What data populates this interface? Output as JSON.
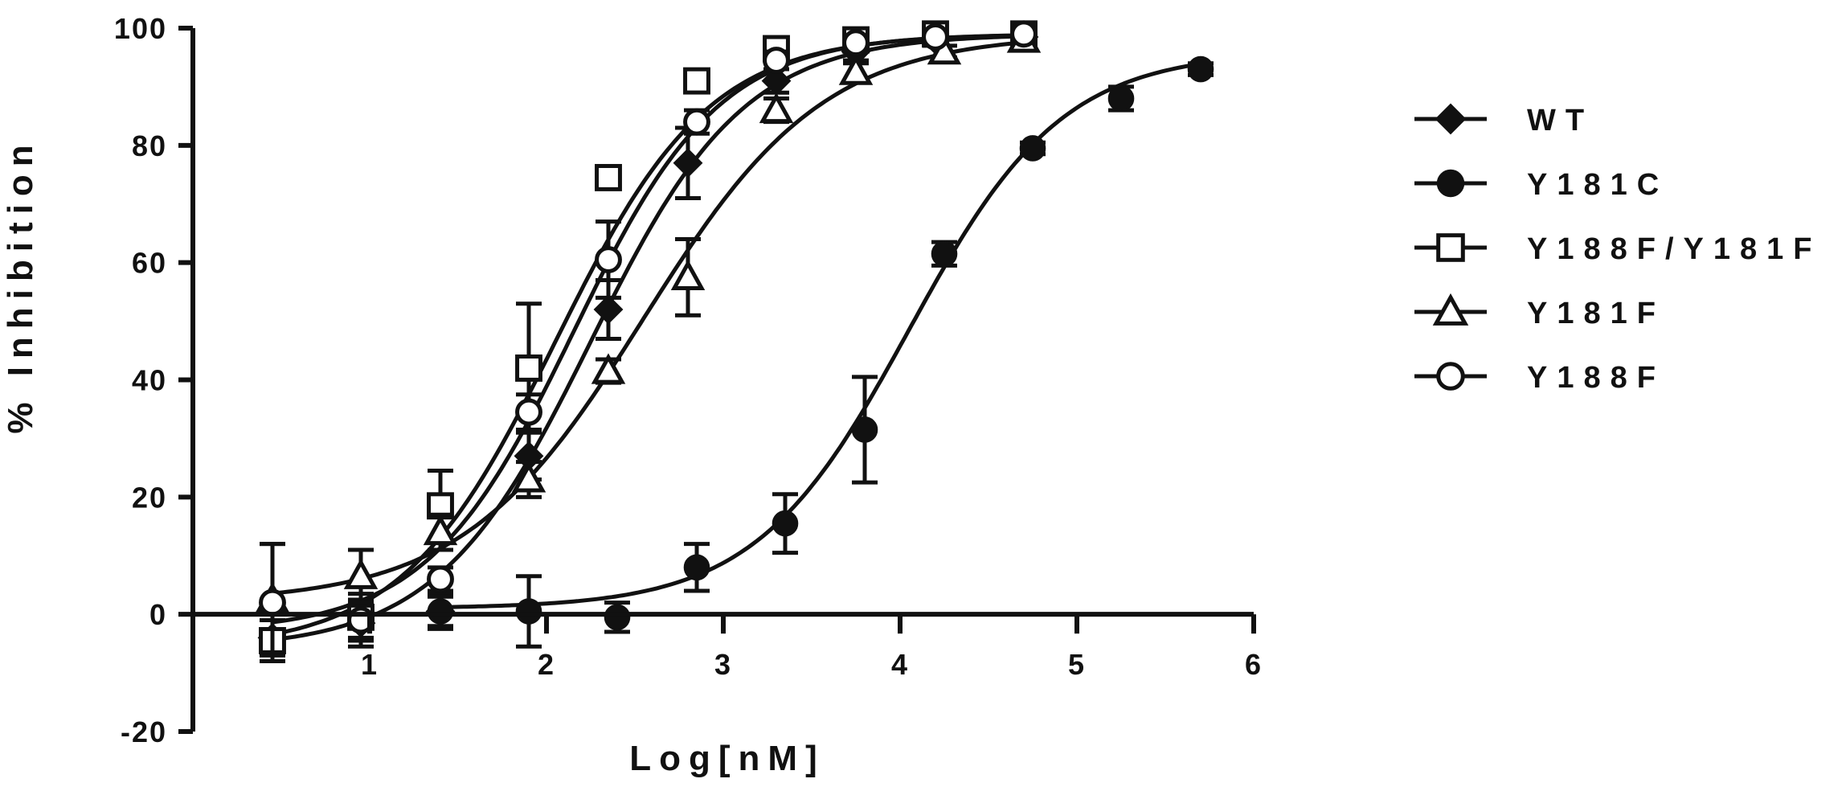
{
  "chart_data": {
    "type": "scatter",
    "xlabel": "Log[nM]",
    "ylabel": "% Inhibition",
    "xlim": [
      0,
      6
    ],
    "ylim": [
      -20,
      100
    ],
    "x_ticks": [
      1,
      2,
      3,
      4,
      5,
      6
    ],
    "y_ticks": [
      -20,
      0,
      20,
      40,
      60,
      80,
      100
    ],
    "x_tick_labels": [
      "1",
      "2",
      "3",
      "4",
      "5",
      "6"
    ],
    "y_tick_labels": [
      "-20",
      "0",
      "20",
      "40",
      "60",
      "80",
      "100"
    ],
    "legend_position": "right",
    "grid": false,
    "fit": "four-parameter logistic curve per series",
    "series": [
      {
        "name": "WT",
        "marker": "diamond-filled",
        "points": [
          {
            "x": 0.45,
            "y": -4.0,
            "err": 3.0
          },
          {
            "x": 0.95,
            "y": -1.5,
            "err": 4.0
          },
          {
            "x": 1.4,
            "y": 0.5,
            "err": 3.0
          },
          {
            "x": 1.9,
            "y": 27.0,
            "err": 4.0
          },
          {
            "x": 2.35,
            "y": 52.0,
            "err": 5.0
          },
          {
            "x": 2.8,
            "y": 77.0,
            "err": 6.0
          },
          {
            "x": 3.3,
            "y": 91.0,
            "err": 2.0
          },
          {
            "x": 3.75,
            "y": 96.0,
            "err": 1.5
          },
          {
            "x": 4.2,
            "y": 98.0,
            "err": 1.0
          },
          {
            "x": 4.7,
            "y": 98.5,
            "err": 1.0
          }
        ],
        "curve": {
          "bottom": -6,
          "top": 99,
          "logIC50": 2.25,
          "hill": 1.0
        }
      },
      {
        "name": "Y181C",
        "marker": "circle-filled",
        "points": [
          {
            "x": 1.4,
            "y": 0.5,
            "err": 2.5
          },
          {
            "x": 1.9,
            "y": 0.5,
            "err": 6.0
          },
          {
            "x": 2.4,
            "y": -0.5,
            "err": 2.5
          },
          {
            "x": 2.85,
            "y": 8.0,
            "err": 4.0
          },
          {
            "x": 3.35,
            "y": 15.5,
            "err": 5.0
          },
          {
            "x": 3.8,
            "y": 31.5,
            "err": 9.0
          },
          {
            "x": 4.25,
            "y": 61.5,
            "err": 2.0
          },
          {
            "x": 4.75,
            "y": 79.5,
            "err": 1.0
          },
          {
            "x": 5.25,
            "y": 88.0,
            "err": 2.0
          },
          {
            "x": 5.7,
            "y": 93.0,
            "err": 1.0
          }
        ],
        "curve": {
          "bottom": 1,
          "top": 96,
          "logIC50": 4.05,
          "hill": 1.0
        }
      },
      {
        "name": "Y188F/Y181F",
        "marker": "square-open",
        "points": [
          {
            "x": 0.45,
            "y": -4.5,
            "err": 3.5
          },
          {
            "x": 0.95,
            "y": -0.5,
            "err": 4.0
          },
          {
            "x": 1.4,
            "y": 18.5,
            "err": 6.0
          },
          {
            "x": 1.9,
            "y": 42.0,
            "err": 11.0
          },
          {
            "x": 2.35,
            "y": 74.5,
            "err": 1.0
          },
          {
            "x": 2.85,
            "y": 91.0,
            "err": 1.0
          },
          {
            "x": 3.3,
            "y": 96.5,
            "err": 1.0
          },
          {
            "x": 3.75,
            "y": 98.0,
            "err": 1.0
          },
          {
            "x": 4.2,
            "y": 99.0,
            "err": 1.0
          },
          {
            "x": 4.7,
            "y": 99.0,
            "err": 1.0
          }
        ],
        "curve": {
          "bottom": -6,
          "top": 99,
          "logIC50": 2.05,
          "hill": 1.0
        }
      },
      {
        "name": "Y181F",
        "marker": "triangle-open",
        "points": [
          {
            "x": 0.45,
            "y": 2.5,
            "err": 9.5
          },
          {
            "x": 0.95,
            "y": 6.5,
            "err": 4.5
          },
          {
            "x": 1.4,
            "y": 14.0,
            "err": 3.0
          },
          {
            "x": 1.9,
            "y": 23.0,
            "err": 3.0
          },
          {
            "x": 2.35,
            "y": 41.5,
            "err": 2.0
          },
          {
            "x": 2.8,
            "y": 57.5,
            "err": 6.5
          },
          {
            "x": 3.3,
            "y": 86.0,
            "err": 2.0
          },
          {
            "x": 3.75,
            "y": 92.5,
            "err": 1.5
          },
          {
            "x": 4.25,
            "y": 96.0,
            "err": 1.0
          },
          {
            "x": 4.7,
            "y": 98.0,
            "err": 1.0
          }
        ],
        "curve": {
          "bottom": 2,
          "top": 99,
          "logIC50": 2.55,
          "hill": 0.85
        }
      },
      {
        "name": "Y188F",
        "marker": "circle-open",
        "points": [
          {
            "x": 0.45,
            "y": 2.0,
            "err": 10.0
          },
          {
            "x": 0.95,
            "y": -1.0,
            "err": 3.0
          },
          {
            "x": 1.4,
            "y": 6.0,
            "err": 2.0
          },
          {
            "x": 1.9,
            "y": 34.5,
            "err": 3.0
          },
          {
            "x": 2.35,
            "y": 60.5,
            "err": 6.5
          },
          {
            "x": 2.85,
            "y": 84.0,
            "err": 2.0
          },
          {
            "x": 3.3,
            "y": 94.5,
            "err": 1.5
          },
          {
            "x": 3.75,
            "y": 97.5,
            "err": 1.0
          },
          {
            "x": 4.2,
            "y": 98.5,
            "err": 1.0
          },
          {
            "x": 4.7,
            "y": 99.0,
            "err": 1.0
          }
        ],
        "curve": {
          "bottom": -3,
          "top": 99,
          "logIC50": 2.15,
          "hill": 1.05
        }
      }
    ]
  }
}
